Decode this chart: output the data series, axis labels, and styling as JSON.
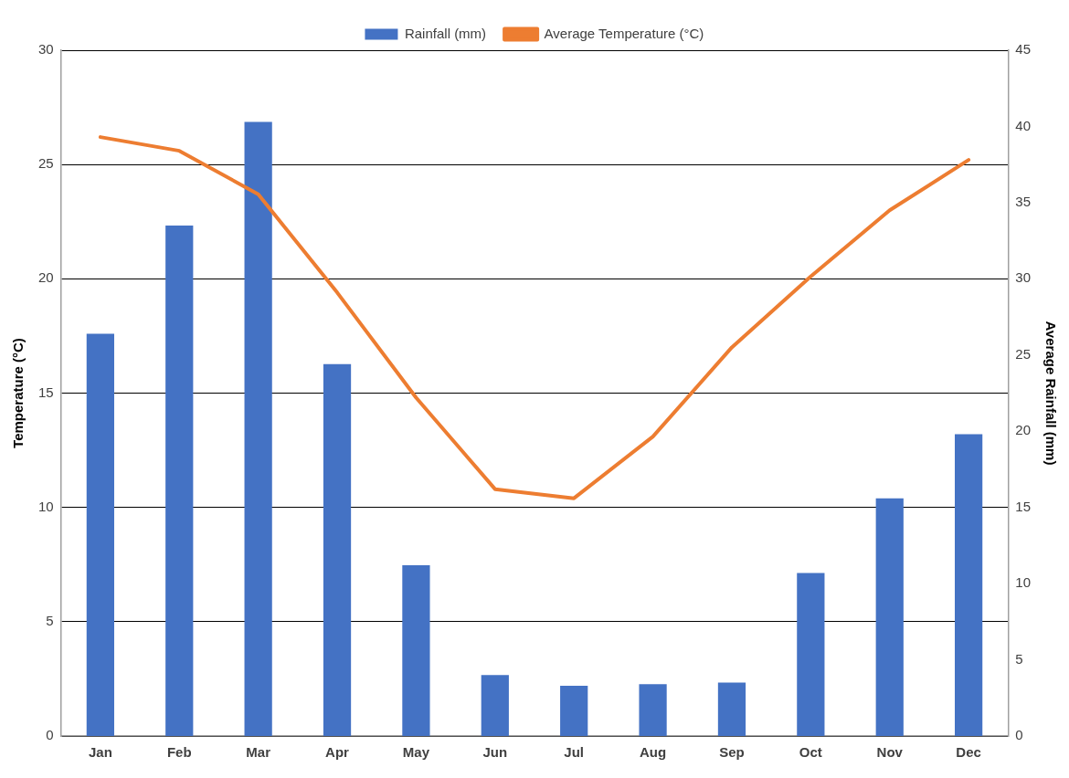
{
  "chart_data": {
    "type": "bar",
    "ylabel": "Temperature (°C)",
    "y2label": "Average Rainfall (mm)",
    "categories": [
      "Jan",
      "Feb",
      "Mar",
      "Apr",
      "May",
      "Jun",
      "Jul",
      "Aug",
      "Sep",
      "Oct",
      "Nov",
      "Dec"
    ],
    "series": [
      {
        "name": "Rainfall (mm)",
        "axis": "y2",
        "color": "#4472c4",
        "values": [
          26.4,
          33.5,
          40.3,
          24.4,
          11.2,
          4.0,
          3.3,
          3.4,
          3.5,
          10.7,
          15.6,
          19.8
        ]
      },
      {
        "name": "Average Temperature (°C)",
        "type": "line",
        "axis": "y",
        "color": "#ed7d31",
        "values": [
          26.2,
          25.6,
          23.7,
          19.4,
          14.8,
          10.8,
          10.4,
          13.1,
          17.0,
          20.1,
          23.0,
          25.2
        ]
      }
    ],
    "ylim": [
      0,
      30
    ],
    "yticks": [
      0,
      5,
      10,
      15,
      20,
      25,
      30
    ],
    "y2lim": [
      0,
      45
    ],
    "y2ticks": [
      0,
      5,
      10,
      15,
      20,
      25,
      30,
      35,
      40,
      45
    ],
    "grid": "y",
    "legend": "top",
    "marker": "none",
    "line_style": "solid"
  }
}
